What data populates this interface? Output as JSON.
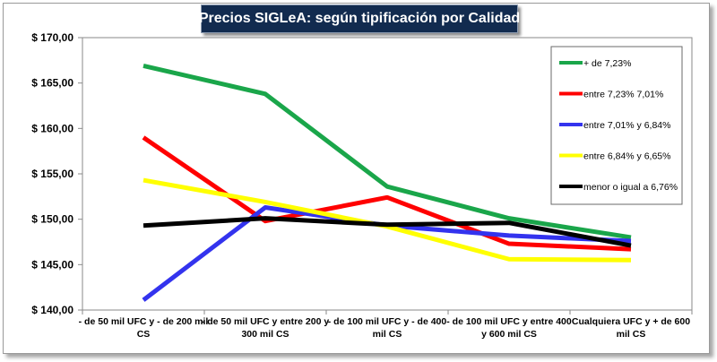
{
  "chart_data": {
    "type": "line",
    "title": "Precios SIGLeA: según tipificación por Calidad",
    "xlabel": "",
    "ylabel": "",
    "ylim": [
      140,
      170
    ],
    "ytick_step": 5,
    "ytick_labels": [
      "$ 140,00",
      "$ 145,00",
      "$ 150,00",
      "$ 155,00",
      "$ 160,00",
      "$ 165,00",
      "$ 170,00"
    ],
    "grid": false,
    "legend_position": "top-right",
    "categories": [
      [
        "- de 50 mil UFC y - de 200 mil",
        "CS"
      ],
      [
        "- de 50 mil UFC y entre  200 y",
        "300 mil CS"
      ],
      [
        "- de 100 mil UFC y - de 400",
        "mil CS"
      ],
      [
        "- de 100 mil UFC y entre  400",
        "y 600 mil CS"
      ],
      [
        "Cualquiera UFC y + de 600",
        "mil CS"
      ]
    ],
    "series": [
      {
        "name": "+ de 7,23%",
        "color": "#1aa64a",
        "values": [
          166.9,
          163.8,
          153.6,
          150.1,
          148.0
        ]
      },
      {
        "name": "entre 7,23% 7,01%",
        "color": "#ff0000",
        "values": [
          159.0,
          149.8,
          152.4,
          147.3,
          146.7
        ]
      },
      {
        "name": "entre 7,01% y 6,84%",
        "color": "#3333ee",
        "values": [
          141.1,
          151.3,
          149.3,
          148.2,
          147.6
        ]
      },
      {
        "name": "entre 6,84% y 6,65%",
        "color": "#ffff00",
        "values": [
          154.3,
          151.9,
          149.2,
          145.6,
          145.5
        ]
      },
      {
        "name": "menor o igual a 6,76%",
        "color": "#000000",
        "values": [
          149.3,
          150.1,
          149.4,
          149.6,
          147.1
        ]
      }
    ]
  }
}
